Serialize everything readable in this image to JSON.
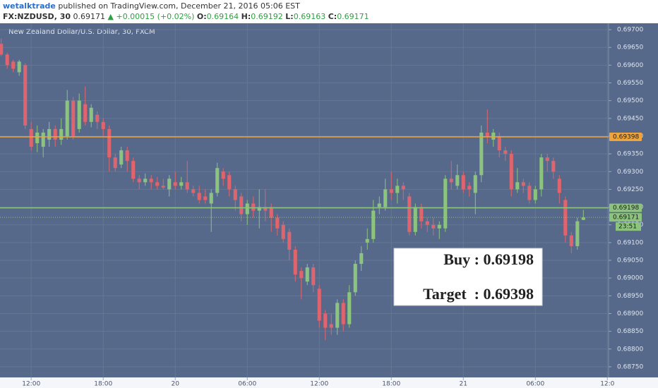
{
  "header": {
    "user": "wetalktrade",
    "published": "published on TradingView.com, December 21, 2016 05:06 EST",
    "symbol": "FX:NZDUSD, 30",
    "last": "0.69171",
    "change": "▲ +0.00015 (+0.02%)",
    "o_label": "O:",
    "open": "0.69164",
    "h_label": "H:",
    "high": "0.69192",
    "l_label": "L:",
    "low": "0.69163",
    "c_label": "C:",
    "close": "0.69171"
  },
  "chart_data": {
    "type": "candlestick",
    "title": "New Zealand Dollar/U.S. Dollar, 30, FXCM",
    "up_color": "#8cc47d",
    "down_color": "#e0646d",
    "grid": true,
    "x": [
      9.5,
      10,
      10.5,
      11,
      11.5,
      12,
      12.5,
      13,
      13.5,
      14,
      14.5,
      15,
      15.5,
      16,
      16.5,
      17,
      17.5,
      18,
      18.5,
      19,
      19.5,
      20,
      20.5,
      21,
      21.5,
      22,
      22.5,
      23,
      23.5,
      24,
      24.5,
      25,
      25.5,
      26,
      26.5,
      27,
      27.5,
      28,
      28.5,
      29,
      29.5,
      30,
      30.5,
      31,
      31.5,
      32,
      32.5,
      33,
      33.5,
      34,
      34.5,
      35,
      35.5,
      36,
      36.5,
      37,
      37.5,
      38,
      38.5,
      39,
      39.5,
      40,
      40.5,
      41,
      41.5,
      42,
      42.5,
      43,
      43.5,
      44,
      44.5,
      45,
      45.5,
      46,
      46.5,
      47,
      47.5,
      48,
      48.5,
      49,
      49.5,
      50,
      50.5,
      51,
      51.5,
      52,
      52.5,
      53,
      53.5,
      54,
      54.5,
      55,
      55.5,
      56,
      56.5,
      57,
      57.5,
      58
    ],
    "open": [
      0.6966,
      0.6963,
      0.6961,
      0.6958,
      0.696,
      0.6942,
      0.6938,
      0.6937,
      0.6939,
      0.6942,
      0.6939,
      0.694,
      0.695,
      0.6942,
      0.6949,
      0.6944,
      0.6946,
      0.6944,
      0.6942,
      0.6934,
      0.6932,
      0.6936,
      0.6933,
      0.6928,
      0.6927,
      0.6928,
      0.6927,
      0.6926,
      0.6925,
      0.6927,
      0.6926,
      0.6927,
      0.6925,
      0.6924,
      0.6923,
      0.6921,
      0.6924,
      0.693,
      0.6929,
      0.6925,
      0.6923,
      0.6918,
      0.6921,
      0.6919,
      0.692,
      0.692,
      0.6917,
      0.6915,
      0.6913,
      0.6908,
      0.6902,
      0.6899,
      0.6903,
      0.6897,
      0.689,
      0.6887,
      0.6886,
      0.6893,
      0.6887,
      0.6896,
      0.6904,
      0.691,
      0.6911,
      0.692,
      0.692,
      0.6925,
      0.6924,
      0.6926,
      0.6923,
      0.6913,
      0.692,
      0.6916,
      0.6915,
      0.6914,
      0.6914,
      0.6928,
      0.6926,
      0.6929,
      0.6926,
      0.6924,
      0.6929,
      0.6941,
      0.6939,
      0.694,
      0.6936,
      0.6935,
      0.6925,
      0.6927,
      0.6926,
      0.6922,
      0.6925,
      0.6934,
      0.6933,
      0.6928,
      0.6922,
      0.6912,
      0.6909,
      0.69164
    ],
    "high": [
      0.69675,
      0.69635,
      0.69615,
      0.69615,
      0.69605,
      0.6944,
      0.6943,
      0.6942,
      0.6944,
      0.6943,
      0.6945,
      0.6953,
      0.6951,
      0.6952,
      0.6954,
      0.6949,
      0.6947,
      0.6945,
      0.6943,
      0.6935,
      0.6937,
      0.6937,
      0.6934,
      0.6929,
      0.69295,
      0.6929,
      0.69285,
      0.6928,
      0.6929,
      0.693,
      0.69285,
      0.6933,
      0.6926,
      0.6926,
      0.6925,
      0.6925,
      0.69325,
      0.6931,
      0.693,
      0.6926,
      0.6924,
      0.6922,
      0.6923,
      0.6925,
      0.6925,
      0.6921,
      0.6918,
      0.6916,
      0.6914,
      0.6909,
      0.6903,
      0.6904,
      0.6904,
      0.6898,
      0.6891,
      0.689,
      0.6894,
      0.6894,
      0.6898,
      0.6905,
      0.6909,
      0.6914,
      0.6922,
      0.6923,
      0.6928,
      0.693,
      0.6928,
      0.6927,
      0.6924,
      0.6921,
      0.6921,
      0.6917,
      0.6917,
      0.6916,
      0.6929,
      0.6933,
      0.6932,
      0.693,
      0.6927,
      0.693,
      0.6943,
      0.69475,
      0.6942,
      0.6941,
      0.6937,
      0.6936,
      0.6931,
      0.6928,
      0.6927,
      0.6926,
      0.6935,
      0.6935,
      0.6934,
      0.6929,
      0.6923,
      0.6913,
      0.6917,
      0.69192
    ],
    "low": [
      0.69625,
      0.6959,
      0.6958,
      0.6957,
      0.6942,
      0.6936,
      0.69355,
      0.6934,
      0.6937,
      0.6937,
      0.69375,
      0.6939,
      0.6939,
      0.6941,
      0.6943,
      0.69425,
      0.6942,
      0.694,
      0.693,
      0.693,
      0.6931,
      0.693,
      0.6927,
      0.6925,
      0.6926,
      0.6925,
      0.6925,
      0.6925,
      0.6923,
      0.6925,
      0.6925,
      0.6924,
      0.6923,
      0.6921,
      0.6921,
      0.6913,
      0.6923,
      0.6926,
      0.6923,
      0.6919,
      0.6916,
      0.6915,
      0.6917,
      0.6914,
      0.6916,
      0.6913,
      0.6912,
      0.691,
      0.6905,
      0.6899,
      0.6894,
      0.6898,
      0.6896,
      0.6886,
      0.68825,
      0.6884,
      0.6884,
      0.6885,
      0.6886,
      0.6895,
      0.6902,
      0.6908,
      0.691,
      0.6918,
      0.6919,
      0.6922,
      0.6921,
      0.6922,
      0.6912,
      0.6912,
      0.6914,
      0.6913,
      0.6912,
      0.6911,
      0.6913,
      0.6925,
      0.6925,
      0.6924,
      0.6923,
      0.6918,
      0.6927,
      0.6938,
      0.6937,
      0.6934,
      0.6933,
      0.6923,
      0.6924,
      0.6924,
      0.6921,
      0.6921,
      0.6923,
      0.693,
      0.6928,
      0.6921,
      0.691,
      0.6907,
      0.6908,
      0.69163
    ],
    "close": [
      0.6963,
      0.696,
      0.6959,
      0.6961,
      0.6943,
      0.6937,
      0.6941,
      0.6941,
      0.6942,
      0.6939,
      0.6942,
      0.695,
      0.694,
      0.695,
      0.6944,
      0.6948,
      0.6944,
      0.6942,
      0.6934,
      0.6931,
      0.6936,
      0.6933,
      0.6928,
      0.6927,
      0.6928,
      0.6927,
      0.6926,
      0.69255,
      0.6928,
      0.6926,
      0.6927,
      0.6925,
      0.6924,
      0.6922,
      0.6922,
      0.6924,
      0.6931,
      0.6928,
      0.6925,
      0.6922,
      0.6918,
      0.6921,
      0.6919,
      0.692,
      0.6919,
      0.6917,
      0.6914,
      0.6911,
      0.6908,
      0.6901,
      0.69,
      0.6903,
      0.6898,
      0.6888,
      0.6886,
      0.6886,
      0.6893,
      0.6887,
      0.6896,
      0.6904,
      0.6907,
      0.6911,
      0.6919,
      0.6921,
      0.6925,
      0.6924,
      0.6926,
      0.6925,
      0.6913,
      0.692,
      0.6916,
      0.6915,
      0.6914,
      0.6915,
      0.6928,
      0.6927,
      0.6929,
      0.6925,
      0.6925,
      0.6929,
      0.6941,
      0.694,
      0.6941,
      0.6936,
      0.6935,
      0.6925,
      0.6927,
      0.6926,
      0.6922,
      0.6925,
      0.6934,
      0.6933,
      0.693,
      0.6924,
      0.6912,
      0.6909,
      0.6916,
      0.69171
    ],
    "xlim": [
      9.4,
      60.1
    ],
    "ylim": [
      0.6872,
      0.69718
    ],
    "xticks": [
      {
        "value": 12,
        "label": "12:00"
      },
      {
        "value": 18,
        "label": "18:00"
      },
      {
        "value": 24,
        "label": "20"
      },
      {
        "value": 30,
        "label": "06:00"
      },
      {
        "value": 36,
        "label": "12:00"
      },
      {
        "value": 42,
        "label": "18:00"
      },
      {
        "value": 48,
        "label": "21"
      },
      {
        "value": 54,
        "label": "06:00"
      },
      {
        "value": 60,
        "label": "12:0"
      }
    ],
    "yticks": [
      {
        "value": 0.697,
        "label": "0.69700"
      },
      {
        "value": 0.6965,
        "label": "0.69650"
      },
      {
        "value": 0.696,
        "label": "0.69600"
      },
      {
        "value": 0.6955,
        "label": "0.69550"
      },
      {
        "value": 0.695,
        "label": "0.69500"
      },
      {
        "value": 0.6945,
        "label": "0.69450"
      },
      {
        "value": 0.694,
        "label": "0.69400"
      },
      {
        "value": 0.6935,
        "label": "0.69350"
      },
      {
        "value": 0.693,
        "label": "0.69300"
      },
      {
        "value": 0.6925,
        "label": "0.69250"
      },
      {
        "value": 0.692,
        "label": "0.69200"
      },
      {
        "value": 0.6915,
        "label": "0.69150"
      },
      {
        "value": 0.691,
        "label": "0.69100"
      },
      {
        "value": 0.6905,
        "label": "0.69050"
      },
      {
        "value": 0.69,
        "label": "0.69000"
      },
      {
        "value": 0.6895,
        "label": "0.68950"
      },
      {
        "value": 0.689,
        "label": "0.68900"
      },
      {
        "value": 0.6885,
        "label": "0.68850"
      },
      {
        "value": 0.688,
        "label": "0.68800"
      },
      {
        "value": 0.6875,
        "label": "0.68750"
      }
    ],
    "price_lines": [
      {
        "value": 0.69398,
        "label": "0.69398",
        "color": "#f0a43c",
        "style": "solid"
      },
      {
        "value": 0.69198,
        "label": "0.69198",
        "color": "#8cc47d",
        "style": "solid"
      },
      {
        "value": 0.69171,
        "label": "0.69171",
        "color": "#8cc47d",
        "style": "dotted"
      }
    ],
    "countdown": "23:51",
    "annotations": [
      "Buy : 0.69198",
      "Target  : 0.69398"
    ]
  }
}
